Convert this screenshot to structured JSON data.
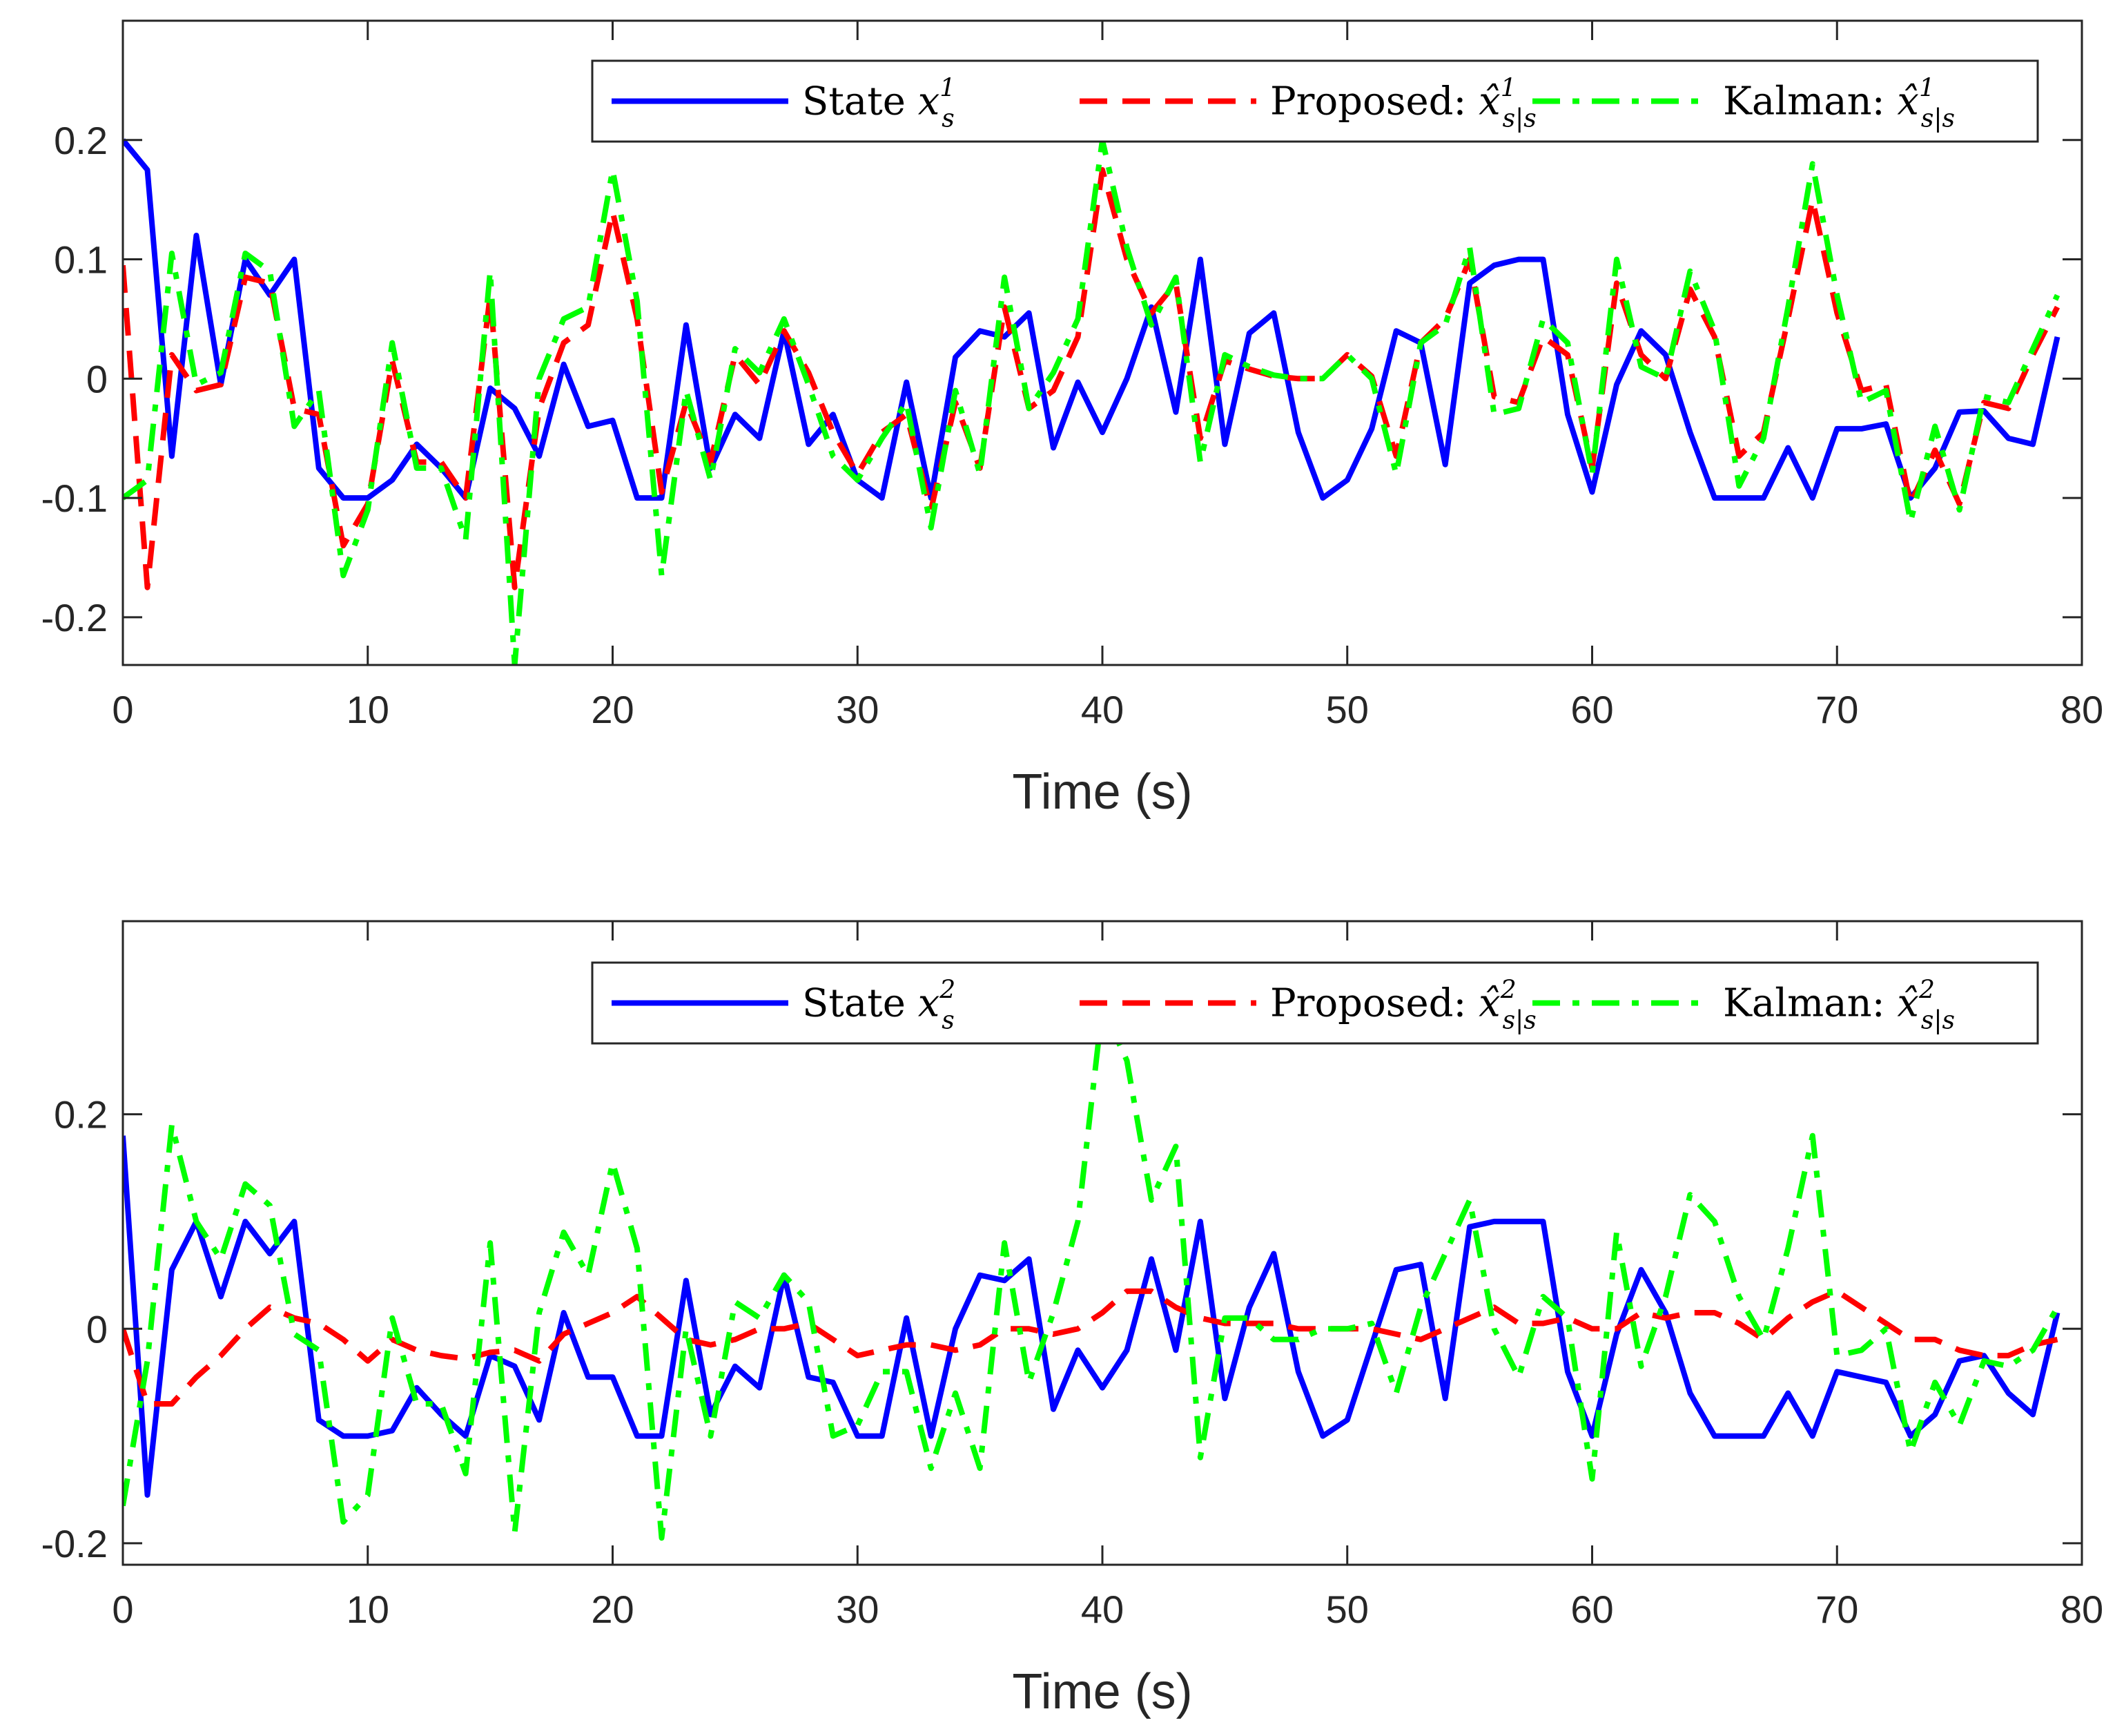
{
  "chart_data": [
    {
      "type": "line",
      "title": "",
      "xlabel": "Time (s)",
      "ylabel": "",
      "xlim": [
        0,
        80
      ],
      "ylim": [
        -0.24,
        0.3
      ],
      "xticks": [
        0,
        10,
        20,
        30,
        40,
        50,
        60,
        70,
        80
      ],
      "xtick_labels": [
        "0",
        "10",
        "20",
        "30",
        "40",
        "50",
        "60",
        "70",
        "80"
      ],
      "yticks": [
        -0.2,
        -0.1,
        0,
        0.1,
        0.2
      ],
      "ytick_labels": [
        "-0.2",
        "-0.1",
        "0",
        "0.1",
        "0.2"
      ],
      "legend_position": "top-right",
      "series": [
        {
          "name": "State x_s^1",
          "legend_label": "State ",
          "legend_symbol": "x",
          "legend_sup": "1",
          "legend_sub": "s",
          "color": "#0000ff",
          "dash": "solid",
          "values": [
            0.2,
            0.175,
            -0.065,
            0.12,
            -0.005,
            0.1,
            0.07,
            0.1,
            -0.075,
            -0.1,
            -0.1,
            -0.085,
            -0.055,
            -0.075,
            -0.1,
            -0.008,
            -0.025,
            -0.065,
            0.012,
            -0.04,
            -0.035,
            -0.1,
            -0.1,
            0.045,
            -0.075,
            -0.03,
            -0.05,
            0.04,
            -0.055,
            -0.03,
            -0.085,
            -0.1,
            -0.003,
            -0.1,
            0.018,
            0.04,
            0.035,
            0.055,
            -0.058,
            -0.003,
            -0.045,
            0.0,
            0.06,
            -0.028,
            0.1,
            -0.055,
            0.038,
            0.055,
            -0.045,
            -0.1,
            -0.085,
            -0.042,
            0.04,
            0.03,
            -0.072,
            0.08,
            0.095,
            0.1,
            0.1,
            -0.03,
            -0.095,
            -0.005,
            0.04,
            0.02,
            -0.045,
            -0.1,
            -0.1,
            -0.1,
            -0.058,
            -0.1,
            -0.042,
            -0.042,
            -0.038,
            -0.1,
            -0.075,
            -0.028,
            -0.027,
            -0.05,
            -0.055,
            0.035
          ]
        },
        {
          "name": "Proposed: x-hat_{s|s}^1",
          "legend_label": "Proposed: ",
          "legend_symbol": "x̂",
          "legend_sup": "1",
          "legend_sub": "s|s",
          "color": "#ff0000",
          "dash": "dashed",
          "values": [
            0.095,
            -0.175,
            0.02,
            -0.01,
            -0.005,
            0.085,
            0.08,
            -0.025,
            -0.03,
            -0.14,
            -0.105,
            0.015,
            -0.07,
            -0.07,
            -0.1,
            0.07,
            -0.175,
            -0.025,
            0.03,
            0.045,
            0.14,
            0.05,
            -0.095,
            -0.02,
            -0.07,
            0.02,
            -0.005,
            0.04,
            0.005,
            -0.045,
            -0.08,
            -0.045,
            -0.03,
            -0.11,
            -0.02,
            -0.075,
            0.06,
            -0.025,
            -0.01,
            0.035,
            0.175,
            0.1,
            0.055,
            0.08,
            -0.05,
            0.015,
            0.008,
            0.002,
            0.0,
            0.0,
            0.02,
            0.002,
            -0.065,
            0.03,
            0.05,
            0.1,
            -0.015,
            -0.02,
            0.035,
            0.02,
            -0.075,
            0.08,
            0.02,
            0.0,
            0.075,
            0.035,
            -0.065,
            -0.045,
            0.05,
            0.15,
            0.055,
            -0.01,
            -0.005,
            -0.105,
            -0.06,
            -0.105,
            -0.02,
            -0.025,
            0.02,
            0.06
          ]
        },
        {
          "name": "Kalman: x-hat_{s|s}^1",
          "legend_label": "Kalman: ",
          "legend_symbol": "x̂",
          "legend_sup": "1",
          "legend_sub": "s|s",
          "color": "#00ff00",
          "dash": "dashdot",
          "values": [
            -0.1,
            -0.085,
            0.105,
            -0.005,
            0.005,
            0.105,
            0.09,
            -0.04,
            -0.01,
            -0.165,
            -0.11,
            0.03,
            -0.075,
            -0.075,
            -0.135,
            0.09,
            -0.24,
            0.0,
            0.05,
            0.06,
            0.175,
            0.065,
            -0.165,
            -0.01,
            -0.085,
            0.025,
            0.005,
            0.05,
            -0.005,
            -0.065,
            -0.085,
            -0.05,
            -0.02,
            -0.125,
            -0.01,
            -0.08,
            0.085,
            -0.025,
            0.005,
            0.05,
            0.2,
            0.11,
            0.045,
            0.085,
            -0.07,
            0.02,
            0.01,
            0.003,
            0.0,
            0.0,
            0.02,
            0.0,
            -0.08,
            0.03,
            0.045,
            0.11,
            -0.03,
            -0.025,
            0.05,
            0.03,
            -0.08,
            0.1,
            0.01,
            0.0,
            0.09,
            0.04,
            -0.09,
            -0.05,
            0.06,
            0.18,
            0.07,
            -0.02,
            -0.01,
            -0.12,
            -0.04,
            -0.11,
            -0.015,
            -0.02,
            0.025,
            0.07
          ]
        }
      ]
    },
    {
      "type": "line",
      "title": "",
      "xlabel": "Time (s)",
      "ylabel": "",
      "xlim": [
        0,
        80
      ],
      "ylim": [
        -0.22,
        0.38
      ],
      "xticks": [
        0,
        10,
        20,
        30,
        40,
        50,
        60,
        70,
        80
      ],
      "xtick_labels": [
        "0",
        "10",
        "20",
        "30",
        "40",
        "50",
        "60",
        "70",
        "80"
      ],
      "yticks": [
        -0.2,
        0,
        0.2
      ],
      "ytick_labels": [
        "-0.2",
        "0",
        "0.2"
      ],
      "legend_position": "top-right",
      "series": [
        {
          "name": "State x_s^2",
          "legend_label": "State ",
          "legend_symbol": "x",
          "legend_sup": "2",
          "legend_sub": "s",
          "color": "#0000ff",
          "dash": "solid",
          "values": [
            0.18,
            -0.155,
            0.055,
            0.1,
            0.03,
            0.1,
            0.07,
            0.1,
            -0.085,
            -0.1,
            -0.1,
            -0.095,
            -0.055,
            -0.08,
            -0.1,
            -0.025,
            -0.035,
            -0.085,
            0.015,
            -0.045,
            -0.045,
            -0.1,
            -0.1,
            0.045,
            -0.08,
            -0.035,
            -0.055,
            0.05,
            -0.045,
            -0.05,
            -0.1,
            -0.1,
            0.01,
            -0.1,
            0.0,
            0.05,
            0.045,
            0.065,
            -0.075,
            -0.02,
            -0.055,
            -0.02,
            0.065,
            -0.02,
            0.1,
            -0.065,
            0.02,
            0.07,
            -0.04,
            -0.1,
            -0.085,
            -0.015,
            0.055,
            0.06,
            -0.065,
            0.095,
            0.1,
            0.1,
            0.1,
            -0.04,
            -0.1,
            -0.005,
            0.055,
            0.015,
            -0.06,
            -0.1,
            -0.1,
            -0.1,
            -0.06,
            -0.1,
            -0.04,
            -0.045,
            -0.05,
            -0.1,
            -0.08,
            -0.03,
            -0.025,
            -0.06,
            -0.08,
            0.015
          ]
        },
        {
          "name": "Proposed: x-hat_{s|s}^2",
          "legend_label": "Proposed: ",
          "legend_symbol": "x̂",
          "legend_sup": "2",
          "legend_sub": "s|s",
          "color": "#ff0000",
          "dash": "dashed",
          "values": [
            0.0,
            -0.07,
            -0.07,
            -0.045,
            -0.025,
            0.0,
            0.02,
            0.01,
            0.005,
            -0.01,
            -0.03,
            -0.01,
            -0.02,
            -0.025,
            -0.028,
            -0.022,
            -0.02,
            -0.03,
            -0.005,
            0.005,
            0.015,
            0.03,
            0.01,
            -0.01,
            -0.015,
            -0.01,
            0.0,
            0.0,
            0.005,
            -0.01,
            -0.025,
            -0.02,
            -0.015,
            -0.015,
            -0.02,
            -0.015,
            0.0,
            0.0,
            -0.005,
            0.0,
            0.015,
            0.035,
            0.035,
            0.02,
            0.01,
            0.005,
            0.005,
            0.005,
            0.0,
            0.0,
            0.0,
            0.0,
            -0.005,
            -0.01,
            0.0,
            0.01,
            0.02,
            0.005,
            0.005,
            0.01,
            0.0,
            0.0,
            0.015,
            0.01,
            0.015,
            0.015,
            0.005,
            -0.01,
            0.01,
            0.025,
            0.035,
            0.02,
            0.005,
            -0.01,
            -0.01,
            -0.02,
            -0.025,
            -0.025,
            -0.015,
            -0.01
          ]
        },
        {
          "name": "Kalman: x-hat_{s|s}^2",
          "legend_label": "Kalman: ",
          "legend_symbol": "x̂",
          "legend_sup": "2",
          "legend_sub": "s|s",
          "color": "#00ff00",
          "dash": "dashdot",
          "values": [
            -0.165,
            -0.03,
            0.19,
            0.1,
            0.065,
            0.135,
            0.115,
            -0.005,
            -0.02,
            -0.18,
            -0.155,
            0.01,
            -0.07,
            -0.07,
            -0.135,
            0.08,
            -0.19,
            0.015,
            0.09,
            0.05,
            0.155,
            0.075,
            -0.195,
            0.0,
            -0.1,
            0.025,
            0.01,
            0.05,
            0.025,
            -0.1,
            -0.09,
            -0.04,
            -0.04,
            -0.13,
            -0.06,
            -0.13,
            0.08,
            -0.05,
            0.015,
            0.1,
            0.3,
            0.25,
            0.12,
            0.17,
            -0.12,
            0.01,
            0.01,
            -0.01,
            -0.01,
            0.0,
            0.0,
            0.005,
            -0.06,
            0.02,
            0.07,
            0.12,
            0.0,
            -0.045,
            0.03,
            0.01,
            -0.14,
            0.09,
            -0.035,
            0.03,
            0.125,
            0.1,
            0.03,
            -0.01,
            0.075,
            0.18,
            -0.025,
            -0.02,
            0.0,
            -0.115,
            -0.05,
            -0.09,
            -0.03,
            -0.035,
            -0.02,
            0.02
          ]
        }
      ]
    }
  ]
}
